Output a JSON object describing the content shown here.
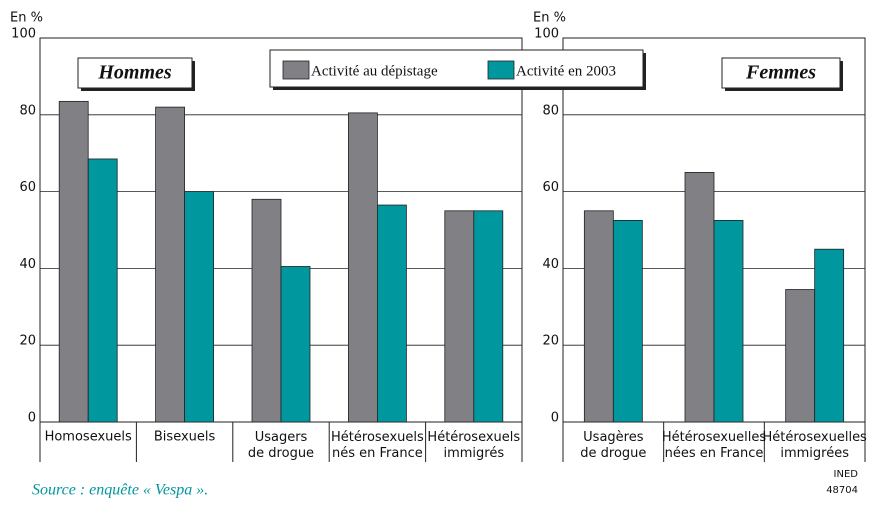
{
  "chart_data": [
    {
      "type": "bar",
      "title": "Hommes",
      "y_label": "En %",
      "categories": [
        "Homosexuels",
        "Bisexuels",
        "Usagers\nde drogue",
        "Hétérosexuels\nnés en France",
        "Hétérosexuels\nimmigrés"
      ],
      "series": [
        {
          "name": "Activité au dépistage",
          "color": "#808085",
          "values": [
            83.5,
            82,
            58,
            80.5,
            55
          ]
        },
        {
          "name": "Activité en 2003",
          "color": "#00979e",
          "values": [
            68.5,
            60,
            40.5,
            56.5,
            55
          ]
        }
      ],
      "ylim": [
        0,
        100
      ],
      "yticks": [
        0,
        20,
        40,
        60,
        80,
        100
      ],
      "grid": true
    },
    {
      "type": "bar",
      "title": "Femmes",
      "y_label": "En %",
      "categories": [
        "Usagères\nde drogue",
        "Hétérosexuelles\nnées en France",
        "Hétérosexuelles\nimmigrées"
      ],
      "series": [
        {
          "color": "#808085",
          "values": [
            55,
            65,
            34.5
          ]
        },
        {
          "color": "#00979e",
          "values": [
            52.5,
            52.5,
            45
          ]
        }
      ],
      "ylim": [
        0,
        100
      ],
      "yticks": [
        0,
        20,
        40,
        60,
        80,
        100
      ],
      "grid": true
    }
  ],
  "source": "Source : enquête « Vespa ».",
  "credit": "INED\n48704"
}
